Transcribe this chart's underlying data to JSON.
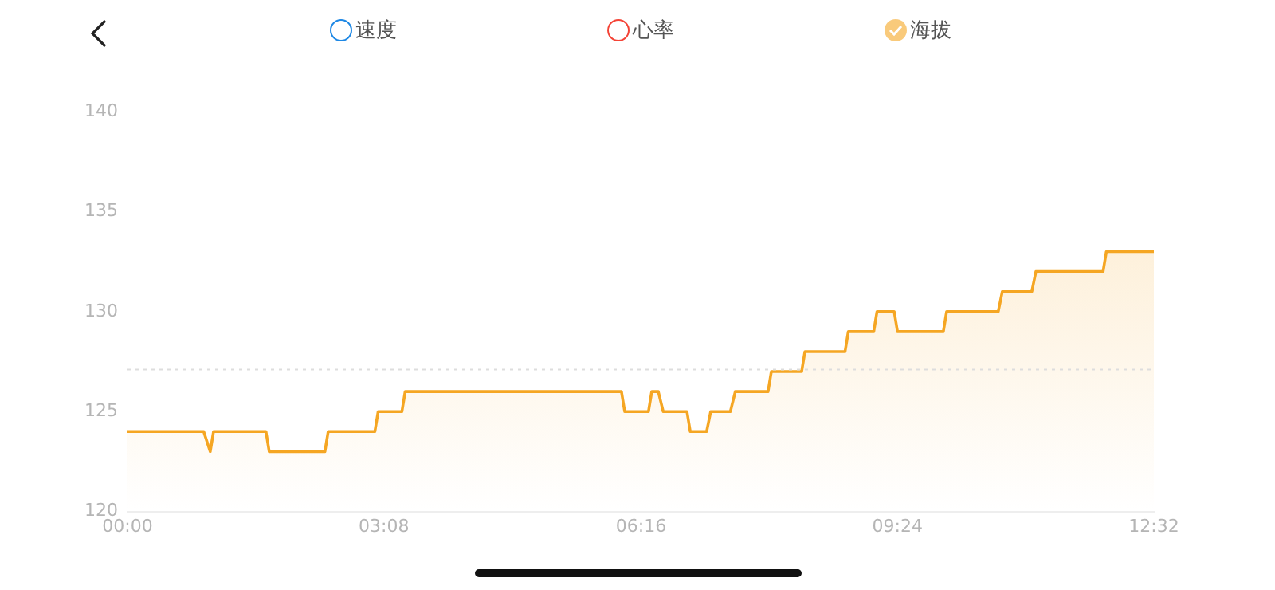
{
  "chart_data": {
    "type": "area",
    "x": [
      0,
      0.93,
      1.01,
      1.05,
      1.69,
      1.73,
      2.41,
      2.45,
      3.02,
      3.06,
      3.35,
      3.39,
      6.03,
      6.07,
      6.36,
      6.4,
      6.48,
      6.54,
      6.83,
      6.87,
      7.07,
      7.12,
      7.36,
      7.42,
      7.82,
      7.86,
      8.23,
      8.27,
      8.76,
      8.8,
      9.11,
      9.15,
      9.36,
      9.4,
      9.96,
      10,
      10.63,
      10.68,
      11.04,
      11.09,
      11.91,
      11.95,
      12.53
    ],
    "series": [
      {
        "name": "速度",
        "color": "#1e88e5",
        "values": [
          null,
          null,
          null,
          null,
          null,
          null,
          null,
          null,
          null,
          null,
          null,
          null,
          null,
          null,
          null,
          null,
          null,
          null,
          null,
          null,
          null,
          null,
          null,
          null,
          null,
          null,
          null,
          null,
          null,
          null,
          null,
          null,
          null,
          null,
          null,
          null,
          null,
          null,
          null,
          null,
          null,
          null,
          null
        ]
      },
      {
        "name": "心率",
        "color": "#f44336",
        "values": [
          null,
          null,
          null,
          null,
          null,
          null,
          null,
          null,
          null,
          null,
          null,
          null,
          null,
          null,
          null,
          null,
          null,
          null,
          null,
          null,
          null,
          null,
          null,
          null,
          null,
          null,
          null,
          null,
          null,
          null,
          null,
          null,
          null,
          null,
          null,
          null,
          null,
          null,
          null,
          null,
          null,
          null,
          null
        ]
      },
      {
        "name": "海拔",
        "color": "#f5a623",
        "values": [
          124,
          124,
          123,
          124,
          124,
          123,
          123,
          124,
          124,
          125,
          125,
          126,
          126,
          125,
          125,
          126,
          126,
          125,
          125,
          124,
          124,
          125,
          125,
          126,
          126,
          127,
          127,
          128,
          128,
          129,
          129,
          130,
          130,
          129,
          129,
          130,
          130,
          131,
          131,
          132,
          132,
          133,
          133
        ]
      }
    ],
    "xlim": [
      0,
      12.53
    ],
    "xticks": [
      {
        "value": 0,
        "label": "00:00"
      },
      {
        "value": 3.13,
        "label": "03:08"
      },
      {
        "value": 6.27,
        "label": "06:16"
      },
      {
        "value": 9.4,
        "label": "09:24"
      },
      {
        "value": 12.53,
        "label": "12:32"
      }
    ],
    "ylim": [
      120,
      140
    ],
    "yticks": [
      120,
      125,
      130,
      135,
      140
    ],
    "ref_lines": [
      {
        "axis": "y",
        "value": 127.1,
        "color": "#dddddd",
        "line_style": "dotted"
      }
    ],
    "grid": false,
    "legend": "top",
    "marker": "none"
  }
}
